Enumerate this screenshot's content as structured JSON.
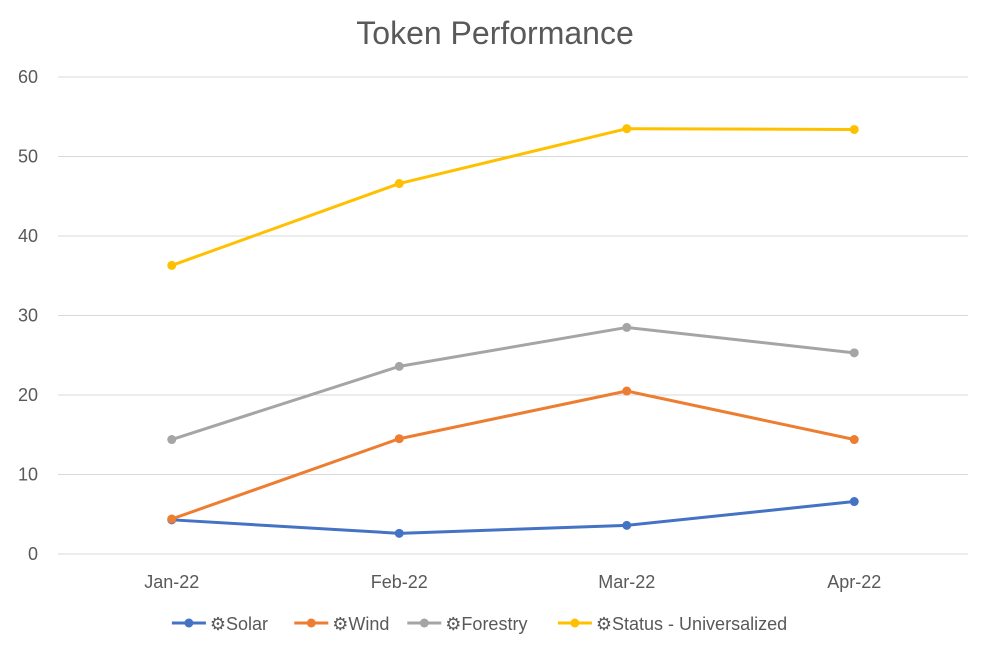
{
  "chart_data": {
    "type": "line",
    "title": "Token Performance",
    "xlabel": "",
    "ylabel": "",
    "categories": [
      "Jan-22",
      "Feb-22",
      "Mar-22",
      "Apr-22"
    ],
    "ylim": [
      0,
      60
    ],
    "yticks": [
      0,
      10,
      20,
      30,
      40,
      50,
      60
    ],
    "grid": "horizontal",
    "legend_position": "bottom",
    "series": [
      {
        "name": "Solar",
        "legend_label": "⚙Solar",
        "color": "#4472C4",
        "values": [
          4.3,
          2.6,
          3.6,
          6.6
        ]
      },
      {
        "name": "Wind",
        "legend_label": "⚙Wind",
        "color": "#ED7D31",
        "values": [
          4.4,
          14.5,
          20.5,
          14.4
        ]
      },
      {
        "name": "Forestry",
        "legend_label": "⚙Forestry",
        "color": "#A5A5A5",
        "values": [
          14.4,
          23.6,
          28.5,
          25.3
        ]
      },
      {
        "name": "Status - Universalized",
        "legend_label": "⚙Status - Universalized",
        "color": "#FFC000",
        "values": [
          36.3,
          46.6,
          53.5,
          53.4
        ]
      }
    ]
  }
}
